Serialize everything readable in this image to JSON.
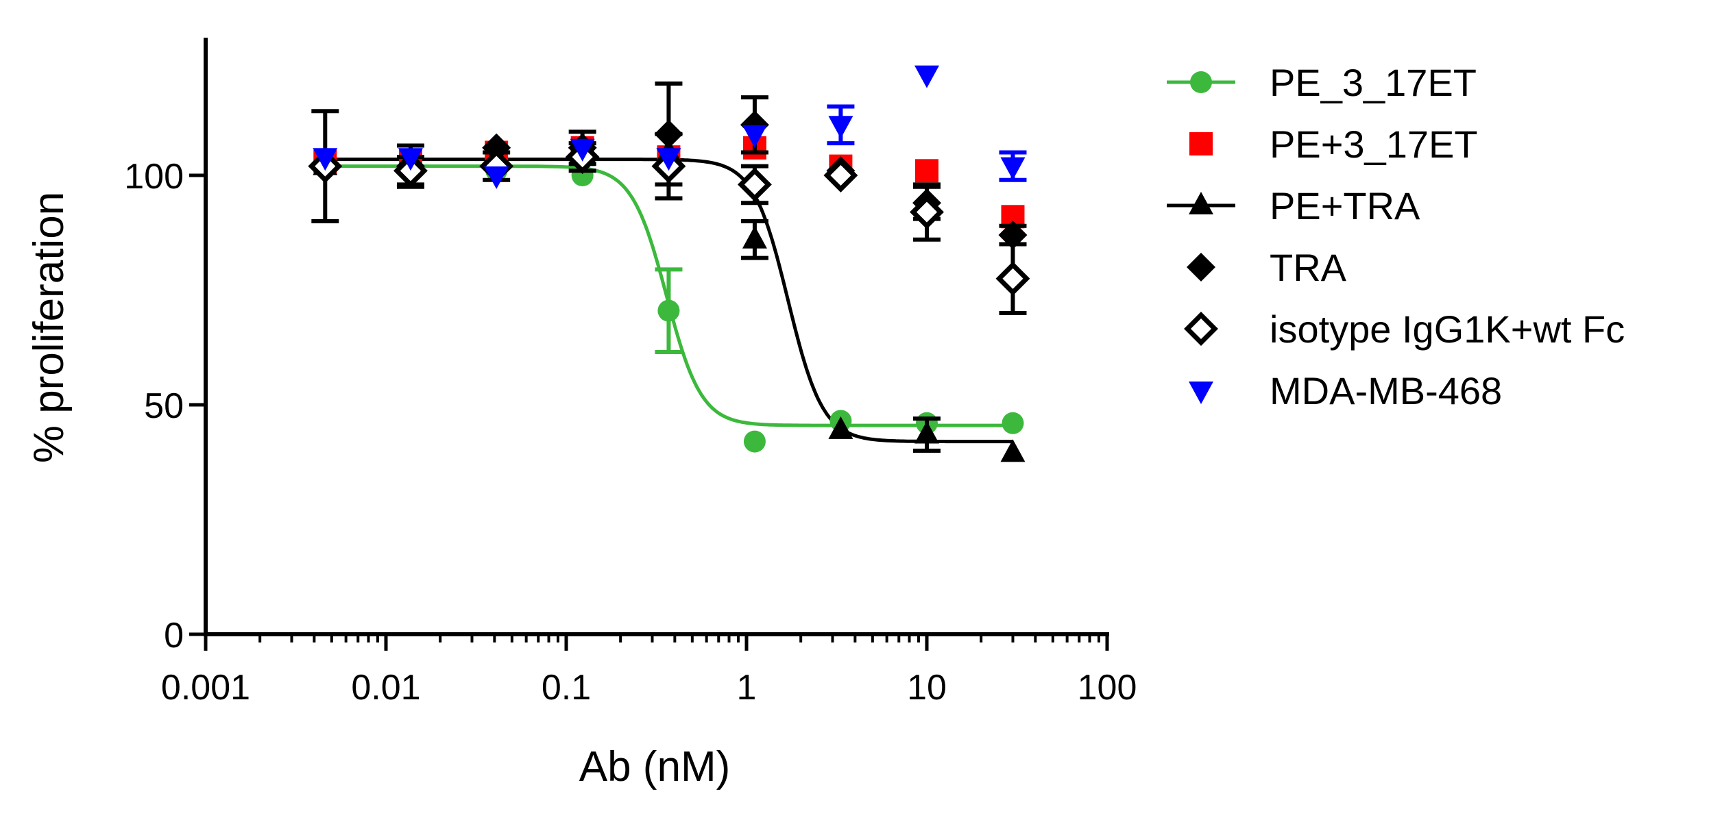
{
  "chart_data": {
    "type": "scatter",
    "title": "",
    "xlabel": "Ab (nM)",
    "ylabel": "% proliferation",
    "xscale": "log",
    "xlim": [
      0.001,
      100
    ],
    "ylim": [
      0,
      130
    ],
    "x_ticks": [
      {
        "value": 0.001,
        "label": "0.001"
      },
      {
        "value": 0.01,
        "label": "0.01"
      },
      {
        "value": 0.1,
        "label": "0.1"
      },
      {
        "value": 1,
        "label": "1"
      },
      {
        "value": 10,
        "label": "10"
      },
      {
        "value": 100,
        "label": "100"
      }
    ],
    "y_ticks": [
      {
        "value": 0,
        "label": "0"
      },
      {
        "value": 50,
        "label": "50"
      },
      {
        "value": 100,
        "label": "100"
      }
    ],
    "legend_position": "right",
    "series": [
      {
        "name": "PE_3_17ET",
        "color": "#3cb93c",
        "marker": "circle",
        "curve": {
          "bottom": 45.5,
          "top": 102,
          "ec50": 0.36,
          "hill": 4.5
        },
        "points": [
          {
            "x": 0.0046,
            "y": 102,
            "err": 0
          },
          {
            "x": 0.0137,
            "y": 102,
            "err": 0
          },
          {
            "x": 0.041,
            "y": 101,
            "err": 0
          },
          {
            "x": 0.123,
            "y": 100,
            "err": 0
          },
          {
            "x": 0.37,
            "y": 70.5,
            "err": 9
          },
          {
            "x": 1.11,
            "y": 42,
            "err": 0
          },
          {
            "x": 3.33,
            "y": 46.5,
            "err": 0
          },
          {
            "x": 10,
            "y": 46,
            "err": 0
          },
          {
            "x": 30,
            "y": 46,
            "err": 0
          }
        ]
      },
      {
        "name": "PE+3_17ET",
        "color": "#ff0000",
        "marker": "square",
        "points": [
          {
            "x": 0.0046,
            "y": 103,
            "err": 0
          },
          {
            "x": 0.0137,
            "y": 103,
            "err": 0
          },
          {
            "x": 0.041,
            "y": 105,
            "err": 0
          },
          {
            "x": 0.123,
            "y": 106,
            "err": 0
          },
          {
            "x": 0.37,
            "y": 104,
            "err": 0
          },
          {
            "x": 1.11,
            "y": 106,
            "err": 0
          },
          {
            "x": 3.33,
            "y": 102,
            "err": 0
          },
          {
            "x": 10,
            "y": 101,
            "err": 0
          },
          {
            "x": 30,
            "y": 91,
            "err": 0
          }
        ]
      },
      {
        "name": "PE+TRA",
        "color": "#000000",
        "marker": "triangle-up",
        "curve": {
          "bottom": 42,
          "top": 103.5,
          "ec50": 1.7,
          "hill": 4.5
        },
        "points": [
          {
            "x": 0.0046,
            "y": 102,
            "err": 0
          },
          {
            "x": 0.0137,
            "y": 103,
            "err": 0
          },
          {
            "x": 0.041,
            "y": 104,
            "err": 0
          },
          {
            "x": 0.123,
            "y": 104,
            "err": 0
          },
          {
            "x": 0.37,
            "y": 105,
            "err": 0
          },
          {
            "x": 1.11,
            "y": 86,
            "err": 4
          },
          {
            "x": 3.33,
            "y": 44.5,
            "err": 0
          },
          {
            "x": 10,
            "y": 43.5,
            "err": 3.5
          },
          {
            "x": 30,
            "y": 39.5,
            "err": 0
          }
        ]
      },
      {
        "name": "TRA",
        "color": "#000000",
        "marker": "diamond",
        "points": [
          {
            "x": 0.0046,
            "y": 102,
            "err": 12
          },
          {
            "x": 0.0137,
            "y": 102,
            "err": 4.5
          },
          {
            "x": 0.041,
            "y": 106,
            "err": 0
          },
          {
            "x": 0.123,
            "y": 106,
            "err": 3.5
          },
          {
            "x": 0.37,
            "y": 109,
            "err": 11
          },
          {
            "x": 1.11,
            "y": 111,
            "err": 6
          },
          {
            "x": 3.33,
            "y": 101,
            "err": 0
          },
          {
            "x": 10,
            "y": 94,
            "err": 3.5
          },
          {
            "x": 30,
            "y": 87,
            "err": 2
          }
        ]
      },
      {
        "name": "isotype IgG1K+wt Fc",
        "color": "#000000",
        "marker": "diamond-open",
        "points": [
          {
            "x": 0.0046,
            "y": 102,
            "err": 0
          },
          {
            "x": 0.0137,
            "y": 101,
            "err": 3
          },
          {
            "x": 0.041,
            "y": 102,
            "err": 3
          },
          {
            "x": 0.123,
            "y": 104,
            "err": 3
          },
          {
            "x": 0.37,
            "y": 102,
            "err": 7
          },
          {
            "x": 1.11,
            "y": 98,
            "err": 4
          },
          {
            "x": 3.33,
            "y": 100,
            "err": 0
          },
          {
            "x": 10,
            "y": 92,
            "err": 6
          },
          {
            "x": 30,
            "y": 77.5,
            "err": 7.5
          }
        ]
      },
      {
        "name": "MDA-MB-468",
        "color": "#0000ff",
        "marker": "triangle-down",
        "points": [
          {
            "x": 0.0046,
            "y": 104,
            "err": 0
          },
          {
            "x": 0.0137,
            "y": 104,
            "err": 0
          },
          {
            "x": 0.041,
            "y": 100,
            "err": 0
          },
          {
            "x": 0.123,
            "y": 106,
            "err": 0
          },
          {
            "x": 0.37,
            "y": 104,
            "err": 0
          },
          {
            "x": 1.11,
            "y": 109,
            "err": 0
          },
          {
            "x": 3.33,
            "y": 111,
            "err": 4
          },
          {
            "x": 10,
            "y": 122,
            "err": 0
          },
          {
            "x": 30,
            "y": 102,
            "err": 3
          }
        ]
      }
    ]
  }
}
